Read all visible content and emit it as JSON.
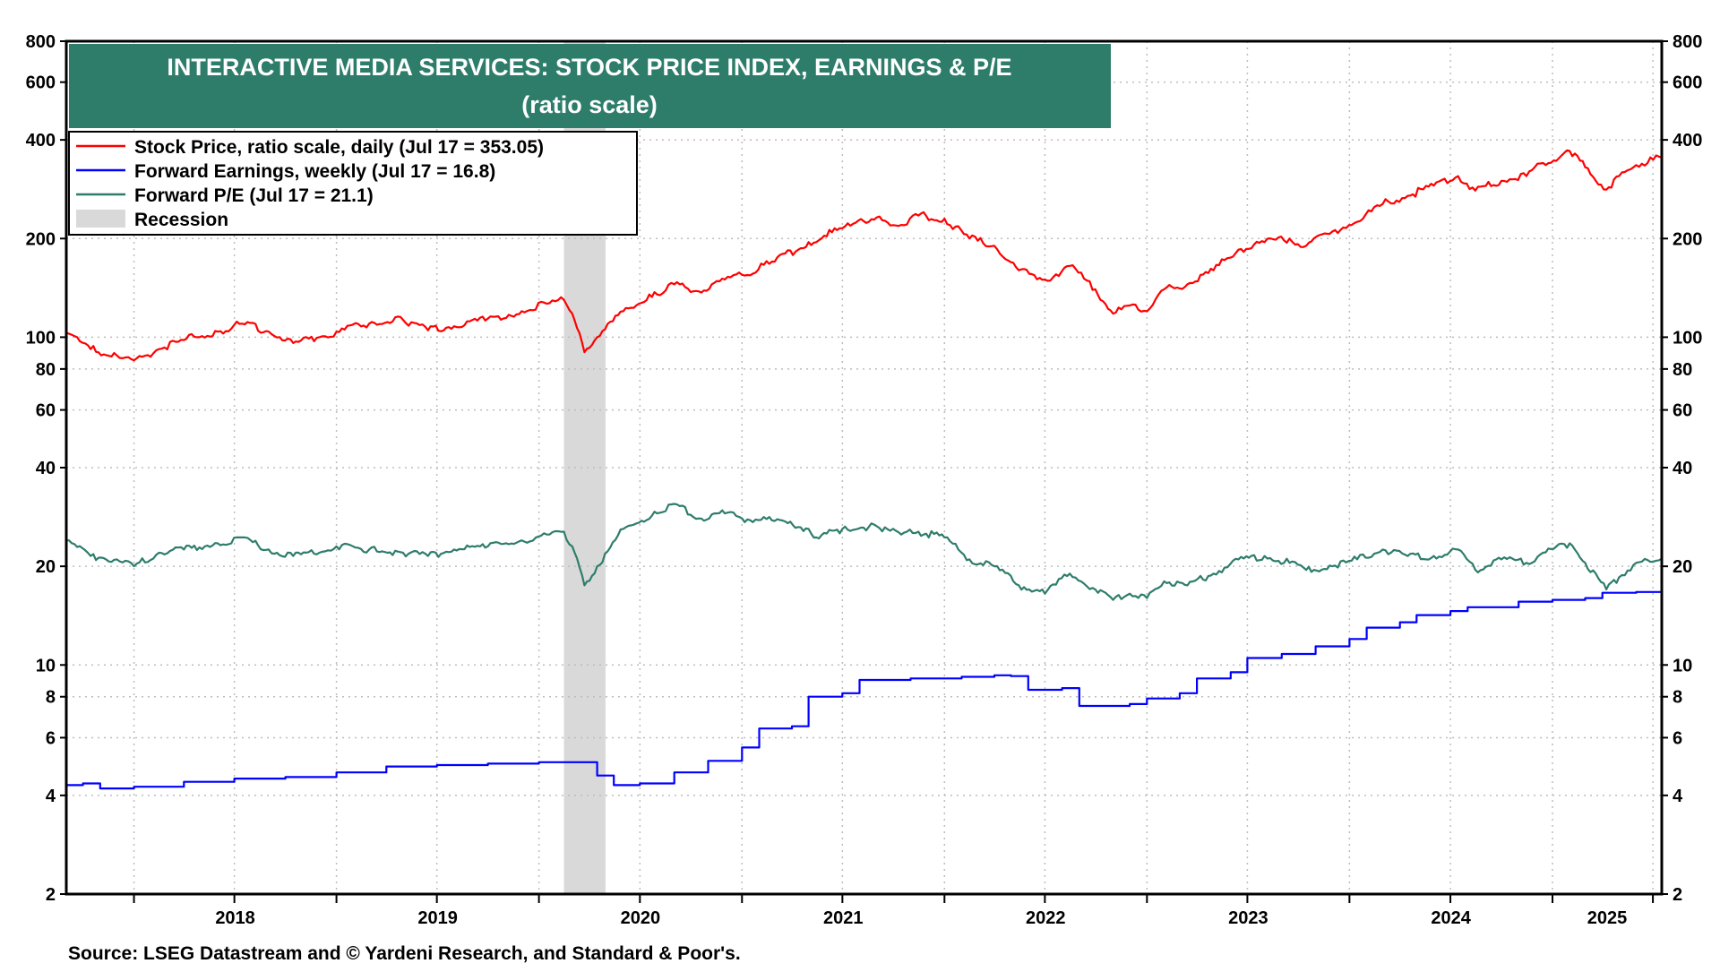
{
  "chart_data": {
    "type": "line",
    "title": "INTERACTIVE MEDIA SERVICES: STOCK PRICE INDEX, EARNINGS & P/E",
    "subtitle": "(ratio scale)",
    "source": "Source: LSEG Datastream and © Yardeni Research, and Standard & Poor's.",
    "y_scale": "log",
    "ylim": [
      2,
      800
    ],
    "y_ticks": [
      2,
      4,
      6,
      8,
      10,
      20,
      40,
      60,
      80,
      100,
      200,
      400,
      600,
      800
    ],
    "x_start": "2017-09-01",
    "x_end": "2025-07-17",
    "x_tick_labels": [
      "2018",
      "2019",
      "2020",
      "2021",
      "2022",
      "2023",
      "2024",
      "2025"
    ],
    "grid": true,
    "legend_position": "top-left",
    "legend": [
      {
        "label": "Stock Price, ratio scale, daily (Jul 17 = 353.05)",
        "color": "#ff0000",
        "kind": "line"
      },
      {
        "label": "Forward Earnings, weekly (Jul 17 = 16.8)",
        "color": "#0000ff",
        "kind": "line"
      },
      {
        "label": "Forward P/E (Jul 17 = 21.1)",
        "color": "#2e7d6b",
        "kind": "line"
      },
      {
        "label": "Recession",
        "color": "#d9d9d9",
        "kind": "box"
      }
    ],
    "recessions": [
      [
        "2020-02-15",
        "2020-04-30"
      ]
    ],
    "series": [
      {
        "name": "Stock Price, ratio scale, daily (Jul 17 = 353.05)",
        "color": "#ff0000",
        "points": [
          [
            "2017-09-01",
            103
          ],
          [
            "2017-10-15",
            92
          ],
          [
            "2017-12-01",
            88
          ],
          [
            "2018-01-01",
            85
          ],
          [
            "2018-02-15",
            92
          ],
          [
            "2018-04-01",
            98
          ],
          [
            "2018-06-01",
            104
          ],
          [
            "2018-07-15",
            110
          ],
          [
            "2018-09-01",
            104
          ],
          [
            "2018-10-15",
            96
          ],
          [
            "2018-12-01",
            100
          ],
          [
            "2019-01-01",
            104
          ],
          [
            "2019-03-01",
            110
          ],
          [
            "2019-05-01",
            113
          ],
          [
            "2019-06-15",
            105
          ],
          [
            "2019-08-01",
            108
          ],
          [
            "2019-10-01",
            114
          ],
          [
            "2019-12-01",
            120
          ],
          [
            "2020-01-20",
            127
          ],
          [
            "2020-02-15",
            130
          ],
          [
            "2020-03-01",
            118
          ],
          [
            "2020-03-23",
            90
          ],
          [
            "2020-04-15",
            100
          ],
          [
            "2020-06-01",
            120
          ],
          [
            "2020-08-01",
            135
          ],
          [
            "2020-09-01",
            145
          ],
          [
            "2020-10-15",
            138
          ],
          [
            "2020-12-01",
            150
          ],
          [
            "2021-01-01",
            155
          ],
          [
            "2021-03-01",
            170
          ],
          [
            "2021-05-01",
            195
          ],
          [
            "2021-07-01",
            215
          ],
          [
            "2021-09-01",
            232
          ],
          [
            "2021-10-15",
            220
          ],
          [
            "2021-11-15",
            235
          ],
          [
            "2022-01-01",
            230
          ],
          [
            "2022-02-15",
            200
          ],
          [
            "2022-04-01",
            190
          ],
          [
            "2022-05-15",
            160
          ],
          [
            "2022-07-01",
            150
          ],
          [
            "2022-08-15",
            165
          ],
          [
            "2022-09-30",
            140
          ],
          [
            "2022-11-01",
            118
          ],
          [
            "2022-12-01",
            125
          ],
          [
            "2023-01-01",
            120
          ],
          [
            "2023-02-01",
            140
          ],
          [
            "2023-03-15",
            145
          ],
          [
            "2023-05-01",
            160
          ],
          [
            "2023-06-15",
            185
          ],
          [
            "2023-08-01",
            195
          ],
          [
            "2023-09-15",
            200
          ],
          [
            "2023-10-15",
            190
          ],
          [
            "2023-12-01",
            210
          ],
          [
            "2024-01-15",
            225
          ],
          [
            "2024-03-01",
            255
          ],
          [
            "2024-04-15",
            270
          ],
          [
            "2024-06-01",
            290
          ],
          [
            "2024-07-15",
            310
          ],
          [
            "2024-08-15",
            280
          ],
          [
            "2024-10-01",
            300
          ],
          [
            "2024-11-15",
            310
          ],
          [
            "2024-12-15",
            340
          ],
          [
            "2025-02-01",
            370
          ],
          [
            "2025-03-01",
            330
          ],
          [
            "2025-04-08",
            282
          ],
          [
            "2025-05-01",
            310
          ],
          [
            "2025-06-01",
            335
          ],
          [
            "2025-07-17",
            353.05
          ]
        ]
      },
      {
        "name": "Forward Earnings, weekly (Jul 17 = 16.8)",
        "color": "#0000ff",
        "points": [
          [
            "2017-09-01",
            4.3
          ],
          [
            "2017-10-01",
            4.35
          ],
          [
            "2017-11-01",
            4.2
          ],
          [
            "2018-01-01",
            4.25
          ],
          [
            "2018-04-01",
            4.4
          ],
          [
            "2018-07-01",
            4.5
          ],
          [
            "2018-10-01",
            4.55
          ],
          [
            "2019-01-01",
            4.7
          ],
          [
            "2019-04-01",
            4.9
          ],
          [
            "2019-07-01",
            4.95
          ],
          [
            "2019-10-01",
            5.0
          ],
          [
            "2020-01-01",
            5.05
          ],
          [
            "2020-03-01",
            5.05
          ],
          [
            "2020-04-15",
            4.6
          ],
          [
            "2020-05-15",
            4.3
          ],
          [
            "2020-07-01",
            4.35
          ],
          [
            "2020-09-01",
            4.7
          ],
          [
            "2020-11-01",
            5.1
          ],
          [
            "2021-01-01",
            5.6
          ],
          [
            "2021-02-01",
            6.4
          ],
          [
            "2021-04-01",
            6.5
          ],
          [
            "2021-05-01",
            8.0
          ],
          [
            "2021-07-01",
            8.2
          ],
          [
            "2021-08-01",
            9.0
          ],
          [
            "2021-11-01",
            9.1
          ],
          [
            "2022-02-01",
            9.2
          ],
          [
            "2022-04-01",
            9.3
          ],
          [
            "2022-05-01",
            9.25
          ],
          [
            "2022-06-01",
            8.4
          ],
          [
            "2022-08-01",
            8.5
          ],
          [
            "2022-09-01",
            7.5
          ],
          [
            "2022-12-01",
            7.6
          ],
          [
            "2023-01-01",
            7.9
          ],
          [
            "2023-03-01",
            8.2
          ],
          [
            "2023-04-01",
            9.1
          ],
          [
            "2023-06-01",
            9.5
          ],
          [
            "2023-07-01",
            10.5
          ],
          [
            "2023-09-01",
            10.8
          ],
          [
            "2023-11-01",
            11.4
          ],
          [
            "2024-01-01",
            12.0
          ],
          [
            "2024-02-01",
            13.0
          ],
          [
            "2024-04-01",
            13.5
          ],
          [
            "2024-05-01",
            14.2
          ],
          [
            "2024-07-01",
            14.6
          ],
          [
            "2024-08-01",
            15.0
          ],
          [
            "2024-11-01",
            15.6
          ],
          [
            "2025-01-01",
            15.8
          ],
          [
            "2025-03-01",
            16.0
          ],
          [
            "2025-04-01",
            16.6
          ],
          [
            "2025-06-01",
            16.7
          ],
          [
            "2025-07-17",
            16.8
          ]
        ]
      },
      {
        "name": "Forward P/E (Jul 17 = 21.1)",
        "color": "#2e7d6b",
        "points": [
          [
            "2017-09-01",
            24
          ],
          [
            "2017-10-15",
            21.5
          ],
          [
            "2017-12-01",
            21
          ],
          [
            "2018-01-01",
            20
          ],
          [
            "2018-02-15",
            22
          ],
          [
            "2018-04-01",
            22.5
          ],
          [
            "2018-06-01",
            23.5
          ],
          [
            "2018-07-15",
            24.5
          ],
          [
            "2018-09-01",
            22.5
          ],
          [
            "2018-10-15",
            21.5
          ],
          [
            "2018-12-01",
            22
          ],
          [
            "2019-01-01",
            23
          ],
          [
            "2019-03-01",
            22.5
          ],
          [
            "2019-05-01",
            22
          ],
          [
            "2019-06-15",
            21.5
          ],
          [
            "2019-08-01",
            22.5
          ],
          [
            "2019-10-01",
            23
          ],
          [
            "2019-12-01",
            24
          ],
          [
            "2020-01-20",
            25
          ],
          [
            "2020-02-15",
            25.5
          ],
          [
            "2020-03-01",
            23
          ],
          [
            "2020-03-23",
            17.5
          ],
          [
            "2020-04-15",
            20
          ],
          [
            "2020-06-01",
            26
          ],
          [
            "2020-08-01",
            29
          ],
          [
            "2020-09-01",
            31
          ],
          [
            "2020-10-15",
            28
          ],
          [
            "2020-12-01",
            29
          ],
          [
            "2021-01-01",
            28
          ],
          [
            "2021-03-01",
            27.5
          ],
          [
            "2021-05-01",
            26
          ],
          [
            "2021-05-15",
            24.5
          ],
          [
            "2021-07-01",
            26
          ],
          [
            "2021-09-01",
            26.5
          ],
          [
            "2021-10-15",
            25
          ],
          [
            "2021-11-15",
            25.5
          ],
          [
            "2022-01-01",
            24.5
          ],
          [
            "2022-02-15",
            21
          ],
          [
            "2022-04-01",
            20
          ],
          [
            "2022-05-15",
            17.5
          ],
          [
            "2022-07-01",
            16.5
          ],
          [
            "2022-08-15",
            19
          ],
          [
            "2022-09-30",
            17
          ],
          [
            "2022-11-01",
            15.8
          ],
          [
            "2022-12-01",
            16.5
          ],
          [
            "2023-01-01",
            16
          ],
          [
            "2023-02-01",
            18
          ],
          [
            "2023-03-15",
            17.5
          ],
          [
            "2023-05-01",
            19
          ],
          [
            "2023-06-15",
            21
          ],
          [
            "2023-08-01",
            21.5
          ],
          [
            "2023-09-15",
            20.5
          ],
          [
            "2023-10-15",
            19.5
          ],
          [
            "2023-12-01",
            20
          ],
          [
            "2024-01-15",
            21
          ],
          [
            "2024-03-01",
            22.5
          ],
          [
            "2024-04-15",
            21.5
          ],
          [
            "2024-06-01",
            21.5
          ],
          [
            "2024-07-15",
            22.5
          ],
          [
            "2024-08-15",
            19.5
          ],
          [
            "2024-10-01",
            21
          ],
          [
            "2024-11-15",
            20.5
          ],
          [
            "2024-12-15",
            22
          ],
          [
            "2025-02-01",
            23.5
          ],
          [
            "2025-03-01",
            20.5
          ],
          [
            "2025-04-08",
            17
          ],
          [
            "2025-05-01",
            18.5
          ],
          [
            "2025-06-01",
            20.5
          ],
          [
            "2025-07-17",
            21.1
          ]
        ]
      }
    ]
  }
}
